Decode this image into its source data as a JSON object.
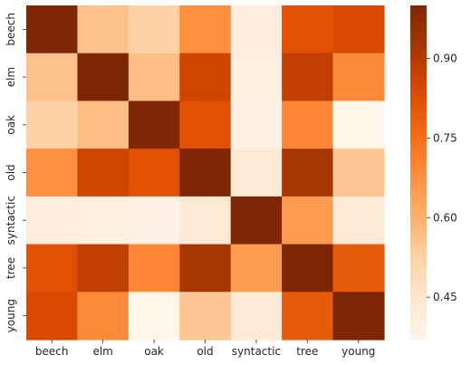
{
  "chart_data": {
    "type": "heatmap",
    "title": "",
    "xlabel": "",
    "ylabel": "",
    "x_categories": [
      "beech",
      "elm",
      "oak",
      "old",
      "syntactic",
      "tree",
      "young"
    ],
    "y_categories": [
      "beech",
      "elm",
      "oak",
      "old",
      "syntactic",
      "tree",
      "young"
    ],
    "matrix": [
      [
        1.0,
        0.56,
        0.52,
        0.68,
        0.41,
        0.82,
        0.84
      ],
      [
        0.56,
        1.0,
        0.57,
        0.86,
        0.4,
        0.88,
        0.69
      ],
      [
        0.52,
        0.57,
        1.0,
        0.82,
        0.39,
        0.7,
        0.37
      ],
      [
        0.68,
        0.86,
        0.82,
        1.0,
        0.43,
        0.92,
        0.55
      ],
      [
        0.41,
        0.4,
        0.39,
        0.43,
        1.0,
        0.65,
        0.43
      ],
      [
        0.82,
        0.88,
        0.7,
        0.92,
        0.65,
        1.0,
        0.8
      ],
      [
        0.84,
        0.69,
        0.37,
        0.55,
        0.43,
        0.8,
        1.0
      ]
    ],
    "colorbar": {
      "min": 0.37,
      "max": 1.0,
      "ticks": [
        0.45,
        0.6,
        0.75,
        0.9
      ],
      "tick_labels": [
        "0.45",
        "0.60",
        "0.75",
        "0.90"
      ],
      "colormap": "Oranges",
      "colors": [
        "#fff5eb",
        "#fee6ce",
        "#fdd0a2",
        "#fdae6b",
        "#fd8d3c",
        "#f16913",
        "#d94801",
        "#a63603",
        "#7f2704"
      ]
    },
    "grid": false,
    "legend": "colorbar-right"
  }
}
